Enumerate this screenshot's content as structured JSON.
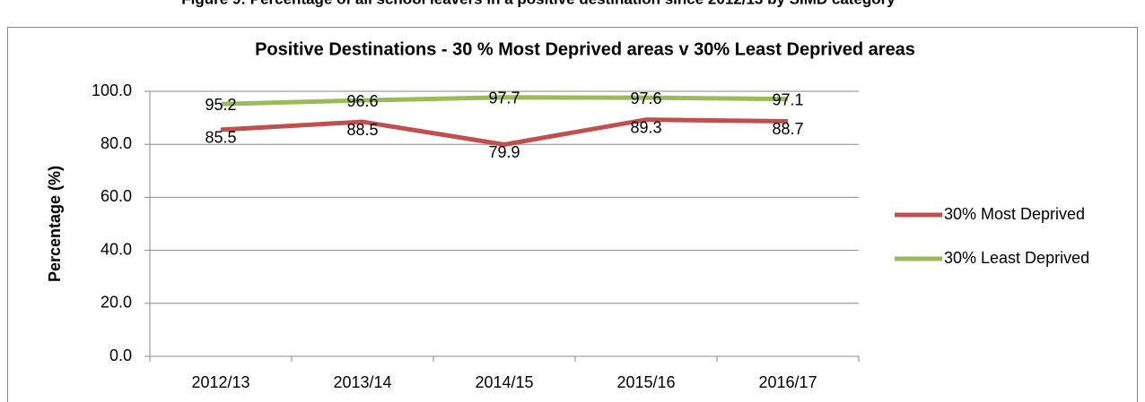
{
  "caption": "Figure 9: Percentage of all school leavers in a positive destination since 2012/13 by SIMD category",
  "chart_data": {
    "type": "line",
    "title": "Positive Destinations - 30 % Most Deprived areas v 30% Least Deprived areas",
    "y_label": "Percentage (%)",
    "categories": [
      "2012/13",
      "2013/14",
      "2014/15",
      "2015/16",
      "2016/17"
    ],
    "series": [
      {
        "name": "30% Most Deprived",
        "color": "#c0504d",
        "values": [
          85.5,
          88.5,
          79.9,
          89.3,
          88.7
        ]
      },
      {
        "name": "30% Least Deprived",
        "color": "#9bbb59",
        "values": [
          95.2,
          96.6,
          97.7,
          97.6,
          97.1
        ]
      }
    ],
    "ylim": [
      0,
      100
    ],
    "yticks": [
      {
        "value": 0,
        "label": "0.0"
      },
      {
        "value": 20,
        "label": "20.0"
      },
      {
        "value": 40,
        "label": "40.0"
      },
      {
        "value": 60,
        "label": "60.0"
      },
      {
        "value": 80,
        "label": "80.0"
      },
      {
        "value": 100,
        "label": "100.0"
      }
    ],
    "grid": true,
    "legend": "right"
  }
}
